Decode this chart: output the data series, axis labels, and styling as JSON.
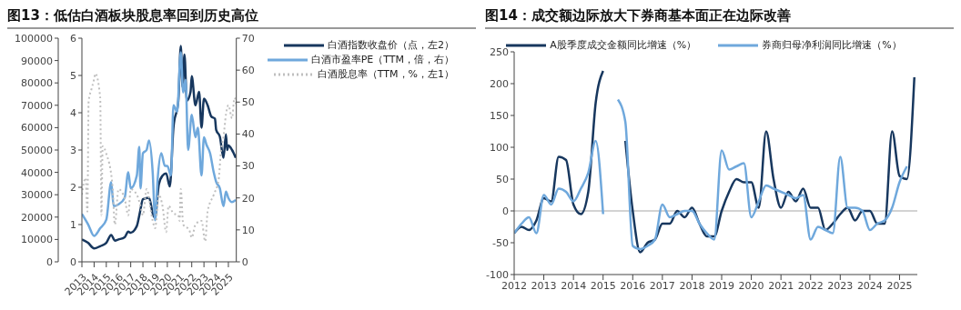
{
  "chart_data": [
    {
      "type": "line",
      "title": "图13：低估白酒板块股息率回到历史高位",
      "xlim": [
        2013,
        2025.65
      ],
      "xticks": [
        2013,
        2014,
        2015,
        2016,
        2017,
        2018,
        2019,
        2020,
        2021,
        2022,
        2023,
        2024,
        2025
      ],
      "ylim": [
        0,
        6
      ],
      "yticks": [
        0,
        1,
        2,
        3,
        4,
        5,
        6
      ],
      "y2lim": [
        0,
        70
      ],
      "y2ticks": [
        0,
        10,
        20,
        30,
        40,
        50,
        60,
        70
      ],
      "y3lim": [
        0,
        100000
      ],
      "y3ticks": [
        0,
        10000,
        20000,
        30000,
        40000,
        50000,
        60000,
        70000,
        80000,
        90000,
        100000
      ],
      "legend": "top right",
      "series": [
        {
          "name": "白酒指数收盘价（点，左2）",
          "color": "#17375e",
          "axis": "y3",
          "x": [
            2013,
            2013.5,
            2014,
            2014.5,
            2015,
            2015.4,
            2015.7,
            2016,
            2016.5,
            2016.8,
            2017,
            2017.5,
            2017.75,
            2018,
            2018.5,
            2018.9,
            2019,
            2019.3,
            2019.6,
            2019.9,
            2020.2,
            2020.5,
            2020.9,
            2021.1,
            2021.25,
            2021.4,
            2021.6,
            2021.9,
            2022,
            2022.3,
            2022.6,
            2022.8,
            2023,
            2023.3,
            2023.6,
            2023.9,
            2024,
            2024.3,
            2024.6,
            2024.8,
            2024.9,
            2025,
            2025.3,
            2025.6
          ],
          "values": [
            10000,
            8500,
            6000,
            7000,
            8500,
            12000,
            9500,
            10000,
            11000,
            13500,
            13000,
            16000,
            22000,
            28000,
            28700,
            20000,
            20000,
            34600,
            38500,
            39500,
            33700,
            60000,
            72000,
            96500,
            78000,
            92700,
            72000,
            76000,
            83000,
            70000,
            76000,
            60000,
            73000,
            70000,
            65000,
            64000,
            59000,
            56000,
            46500,
            57000,
            50000,
            52000,
            50000,
            46500
          ]
        },
        {
          "name": "白酒市盈率PE（TTM，倍，右）",
          "color": "#6fa8dc",
          "axis": "y2",
          "x": [
            2013,
            2013.5,
            2014,
            2014.5,
            2015,
            2015.4,
            2015.6,
            2016,
            2016.5,
            2016.8,
            2017,
            2017.5,
            2017.7,
            2017.8,
            2018,
            2018.3,
            2018.5,
            2018.8,
            2019,
            2019.2,
            2019.5,
            2019.8,
            2020,
            2020.3,
            2020.5,
            2020.8,
            2021.1,
            2021.3,
            2021.5,
            2021.7,
            2022,
            2022.3,
            2022.5,
            2022.8,
            2023,
            2023.2,
            2023.5,
            2023.8,
            2024,
            2024.3,
            2024.6,
            2024.8,
            2025,
            2025.3,
            2025.6
          ],
          "values": [
            15,
            11.8,
            8.1,
            10.5,
            13.2,
            25,
            17.4,
            18,
            20,
            28,
            23,
            27,
            36,
            23,
            34,
            35,
            38,
            28,
            13,
            25.6,
            34,
            30,
            30,
            27,
            49,
            47,
            65.6,
            53,
            57,
            35,
            46,
            39,
            42,
            27,
            39,
            36.7,
            34,
            28,
            25,
            23,
            17.4,
            22,
            20,
            18.7,
            19.4
          ]
        },
        {
          "name": "白酒股息率（TTM，%，左1）",
          "color": "#bfbfbf",
          "axis": "y",
          "line_style": "dotted",
          "x": [
            2013,
            2013.3,
            2013.45,
            2013.55,
            2013.8,
            2014,
            2014.1,
            2014.5,
            2014.6,
            2014.7,
            2015,
            2015.5,
            2015.7,
            2016,
            2016.5,
            2016.8,
            2017,
            2017.5,
            2017.8,
            2018,
            2018.3,
            2018.8,
            2019,
            2019.3,
            2019.6,
            2019.9,
            2020.1,
            2020.5,
            2020.9,
            2021,
            2021.1,
            2021.3,
            2021.8,
            2022,
            2022.3,
            2022.8,
            2023.1,
            2023.3,
            2023.8,
            2024.2,
            2024.4,
            2024.6,
            2024.8,
            2025,
            2025.3,
            2025.5,
            2025.65
          ],
          "values": [
            1.8,
            2.25,
            1.35,
            4.3,
            4.65,
            4.9,
            5.05,
            4.4,
            1.25,
            3.1,
            2.9,
            2.07,
            1,
            1.95,
            1.7,
            1.25,
            1.95,
            1.8,
            1.5,
            1.25,
            1.95,
            1.1,
            0.9,
            1.8,
            1.5,
            0.8,
            1.5,
            1.3,
            1.25,
            1.1,
            1.95,
            1,
            0.85,
            0.65,
            1,
            1.1,
            0.55,
            1.35,
            1.8,
            2.2,
            3,
            3.35,
            3.95,
            4.2,
            3.85,
            4.4,
            4.2
          ]
        }
      ]
    },
    {
      "type": "line",
      "title": "图14：成交额边际放大下券商基本面正在边际改善",
      "xlim": [
        2012,
        2025.6
      ],
      "xticks": [
        2012,
        2013,
        2014,
        2015,
        2016,
        2017,
        2018,
        2019,
        2020,
        2021,
        2022,
        2023,
        2024,
        2025
      ],
      "ylim": [
        -100,
        250
      ],
      "yticks": [
        -100,
        -50,
        0,
        50,
        100,
        150,
        200,
        250
      ],
      "legend": "top",
      "ref_lines": [
        {
          "axis": "y",
          "value": 0,
          "color": "#a6a6a6"
        }
      ],
      "x": [
        2012,
        2012.25,
        2012.5,
        2012.75,
        2013,
        2013.25,
        2013.5,
        2013.75,
        2014,
        2014.25,
        2014.5,
        2014.75,
        2015,
        2015.25,
        2015.5,
        2015.75,
        2016,
        2016.25,
        2016.5,
        2016.75,
        2017,
        2017.25,
        2017.5,
        2017.75,
        2018,
        2018.25,
        2018.5,
        2018.75,
        2019,
        2019.25,
        2019.5,
        2019.75,
        2020,
        2020.25,
        2020.5,
        2020.75,
        2021,
        2021.25,
        2021.5,
        2021.75,
        2022,
        2022.25,
        2022.5,
        2022.75,
        2023,
        2023.25,
        2023.5,
        2023.75,
        2024,
        2024.25,
        2024.5,
        2024.75,
        2025,
        2025.25,
        2025.5
      ],
      "series": [
        {
          "name": "A股季度成交金额同比增速（%）",
          "color": "#17375e",
          "values": [
            -35,
            -25,
            -30,
            -15,
            20,
            15,
            85,
            80,
            10,
            -5,
            30,
            170,
            220,
            null,
            null,
            110,
            0,
            -65,
            -50,
            -45,
            -20,
            -20,
            0,
            -10,
            5,
            -20,
            -40,
            -40,
            0,
            30,
            50,
            45,
            45,
            5,
            125,
            50,
            5,
            30,
            15,
            35,
            5,
            5,
            -30,
            -20,
            -5,
            5,
            -15,
            0,
            0,
            -20,
            -20,
            125,
            55,
            50,
            210
          ]
        },
        {
          "name": "券商归母净利润同比增速（%）",
          "color": "#6fa8dc",
          "values": [
            -35,
            -20,
            -10,
            -35,
            25,
            10,
            35,
            30,
            15,
            35,
            60,
            110,
            -5,
            null,
            175,
            140,
            -55,
            -60,
            -55,
            -45,
            10,
            -10,
            -5,
            0,
            0,
            -20,
            -35,
            -45,
            95,
            65,
            70,
            75,
            -10,
            15,
            40,
            35,
            30,
            25,
            20,
            25,
            -45,
            -25,
            -30,
            -35,
            85,
            5,
            5,
            0,
            -30,
            -20,
            -15,
            5,
            45,
            70,
            null
          ]
        }
      ]
    }
  ]
}
